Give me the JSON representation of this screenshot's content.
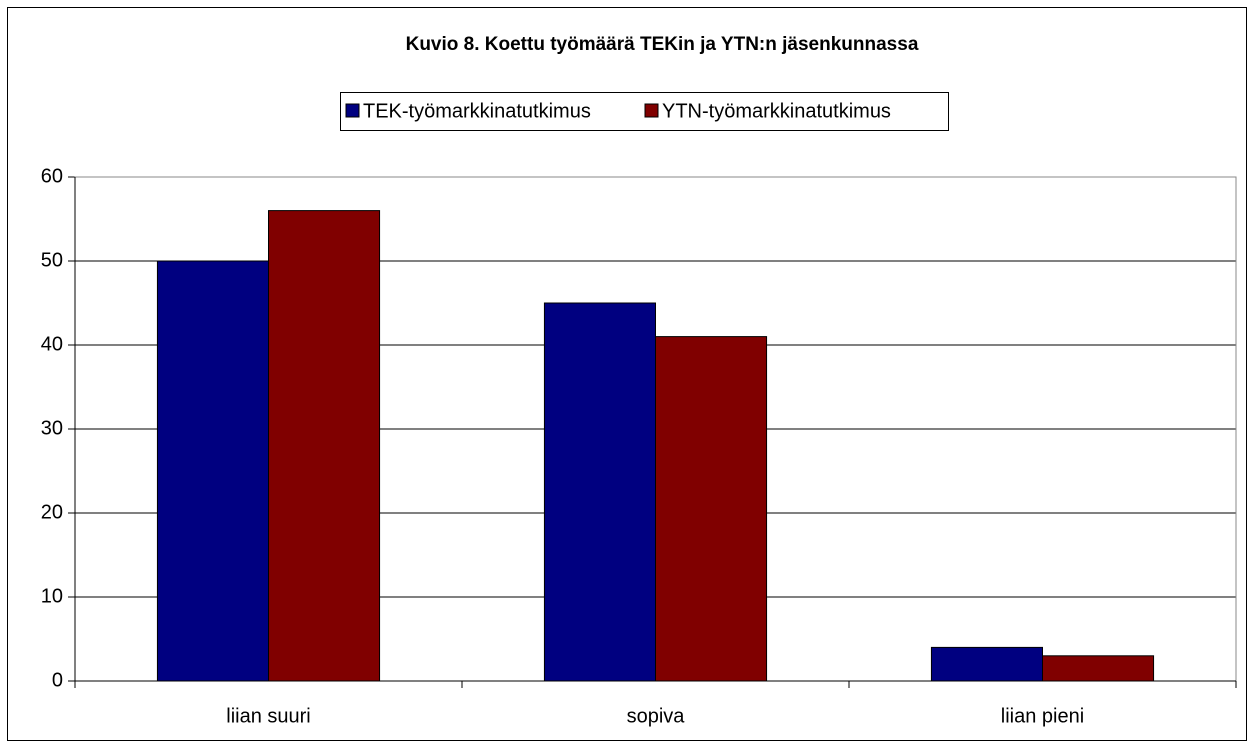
{
  "chart_data": {
    "type": "bar",
    "title": "Kuvio 8. Koettu työmäärä TEKin ja YTN:n jäsenkunnassa",
    "categories": [
      "liian suuri",
      "sopiva",
      "liian pieni"
    ],
    "series": [
      {
        "name": "TEK-työmarkkinatutkimus",
        "color": "#000080",
        "values": [
          50,
          45,
          4
        ]
      },
      {
        "name": "YTN-työmarkkinatutkimus",
        "color": "#800000",
        "values": [
          56,
          41,
          3
        ]
      }
    ],
    "ylim": [
      0,
      60
    ],
    "yticks": [
      0,
      10,
      20,
      30,
      40,
      50,
      60
    ],
    "grid": true,
    "legend": "top"
  }
}
